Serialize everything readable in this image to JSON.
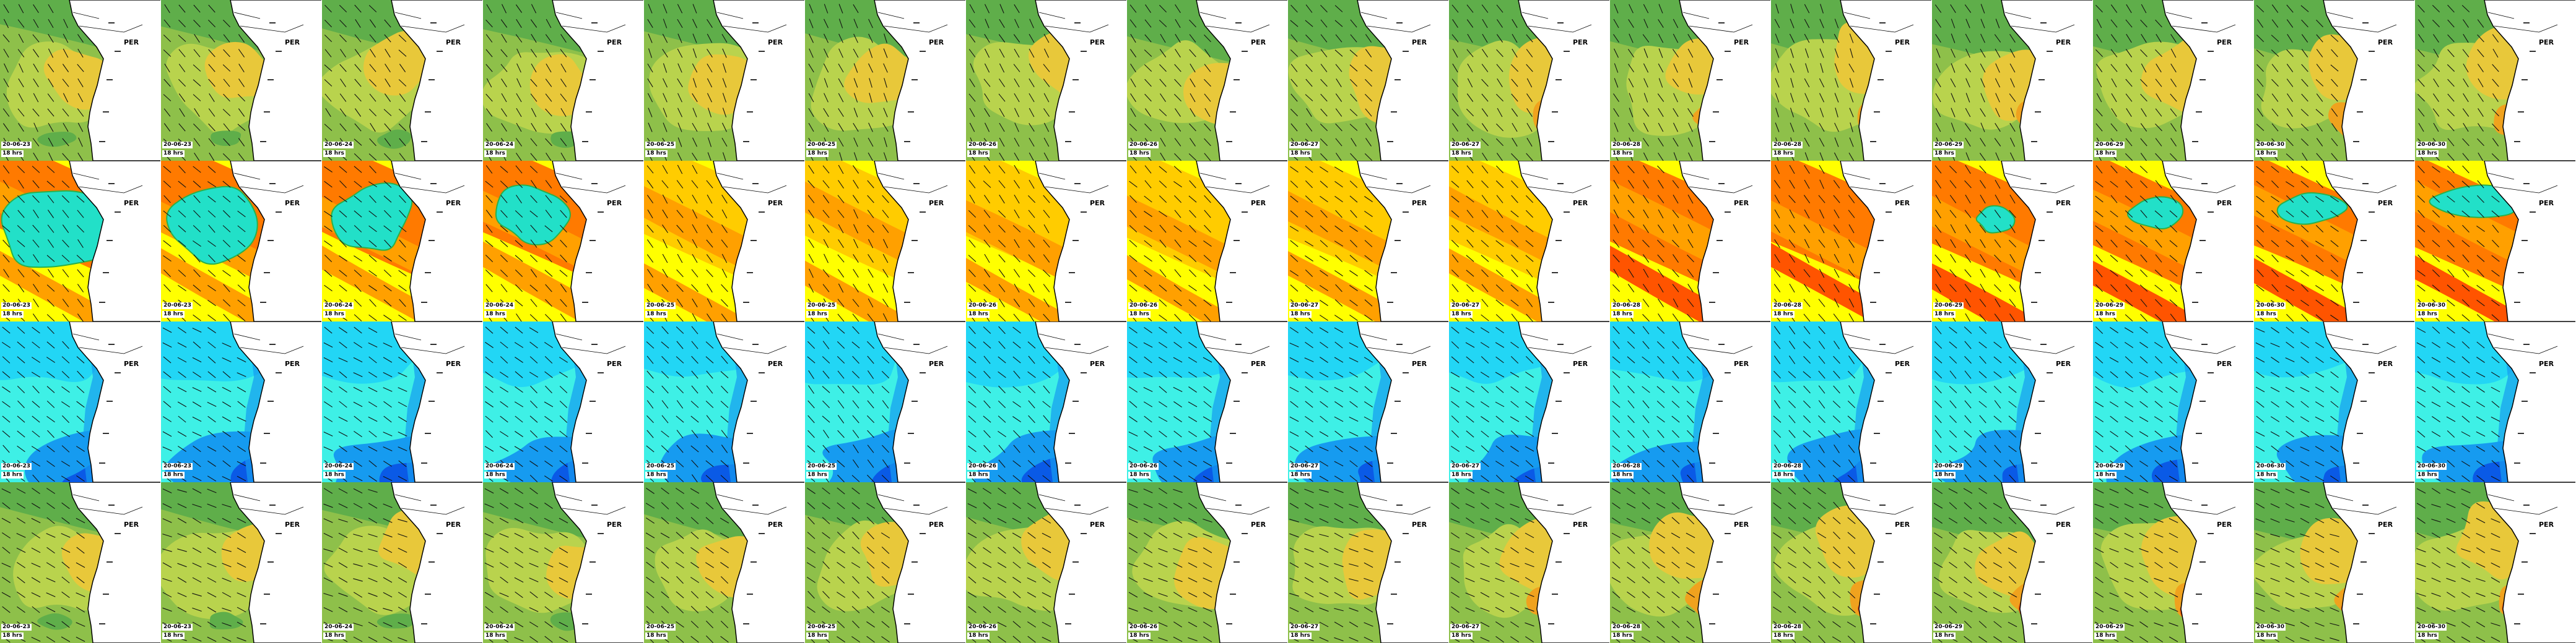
{
  "grid": {
    "rows": 4,
    "columns": 16
  },
  "timesteps": [
    {
      "date": "20-06-23",
      "hour": "18 hrs"
    },
    {
      "date": "20-06-23",
      "hour": "18 hrs"
    },
    {
      "date": "20-06-24",
      "hour": "18 hrs"
    },
    {
      "date": "20-06-24",
      "hour": "18 hrs"
    },
    {
      "date": "20-06-25",
      "hour": "18 hrs"
    },
    {
      "date": "20-06-25",
      "hour": "18 hrs"
    },
    {
      "date": "20-06-26",
      "hour": "18 hrs"
    },
    {
      "date": "20-06-26",
      "hour": "18 hrs"
    },
    {
      "date": "20-06-27",
      "hour": "18 hrs"
    },
    {
      "date": "20-06-27",
      "hour": "18 hrs"
    },
    {
      "date": "20-06-28",
      "hour": "18 hrs"
    },
    {
      "date": "20-06-28",
      "hour": "18 hrs"
    },
    {
      "date": "20-06-29",
      "hour": "18 hrs"
    },
    {
      "date": "20-06-29",
      "hour": "18 hrs"
    },
    {
      "date": "20-06-30",
      "hour": "18 hrs"
    },
    {
      "date": "20-06-30",
      "hour": "18 hrs"
    }
  ],
  "map_labels": {
    "country": "PER"
  },
  "rows": [
    {
      "id": "wave-height",
      "palette": [
        "#5fae4a",
        "#8ec04a",
        "#b9d34d",
        "#e8c83a",
        "#f0a21e",
        "#ee5a12"
      ]
    },
    {
      "id": "wave-period",
      "palette": [
        "#ffff00",
        "#ffcc00",
        "#ffa000",
        "#ff7a00",
        "#ff5400",
        "#22e0c8"
      ]
    },
    {
      "id": "wind",
      "palette": [
        "#0000c8",
        "#0a5ae6",
        "#169bf0",
        "#22d6f5",
        "#3ef0e6",
        "#40e07a"
      ]
    },
    {
      "id": "swell-height",
      "palette": [
        "#5fae4a",
        "#8ec04a",
        "#b9d34d",
        "#e8c83a",
        "#f0a21e",
        "#ee5a12"
      ]
    }
  ],
  "colors": {
    "land": "#ffffff",
    "coastline": "#000000",
    "arrows": "#111111"
  }
}
